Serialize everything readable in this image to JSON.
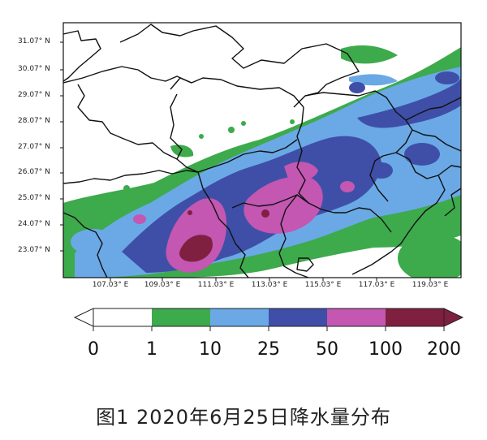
{
  "colors": {
    "band_0_1": "#ffffff",
    "band_1_10": "#3daa4c",
    "band_10_25": "#6aa9e6",
    "band_25_50": "#3f4fa8",
    "band_50_100": "#c357b1",
    "band_100_200": "#7f2041",
    "boundary": "#111111"
  },
  "map": {
    "lat_labels": [
      "31.07° N",
      "30.07° N",
      "29.07° N",
      "28.07° N",
      "27.07° N",
      "26.07° N",
      "25.07° N",
      "24.07° N",
      "23.07° N"
    ],
    "lon_labels": [
      "107.03° E",
      "109.03° E",
      "111.03° E",
      "113.03° E",
      "115.03° E",
      "117.03° E",
      "119.03° E"
    ]
  },
  "colorbar": {
    "ticks": [
      "0",
      "1",
      "10",
      "25",
      "50",
      "100",
      "200"
    ],
    "colors": [
      "#ffffff",
      "#3daa4c",
      "#6aa9e6",
      "#3f4fa8",
      "#c357b1",
      "#7f2041"
    ]
  },
  "caption": "图1  2020年6月25日降水量分布"
}
